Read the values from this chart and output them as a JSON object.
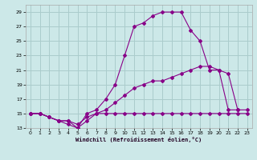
{
  "xlabel": "Windchill (Refroidissement éolien,°C)",
  "bg_color": "#cce8e8",
  "grid_color": "#aacccc",
  "line_color": "#880088",
  "xlim": [
    -0.5,
    23.5
  ],
  "ylim": [
    13,
    30
  ],
  "xticks": [
    0,
    1,
    2,
    3,
    4,
    5,
    6,
    7,
    8,
    9,
    10,
    11,
    12,
    13,
    14,
    15,
    16,
    17,
    18,
    19,
    20,
    21,
    22,
    23
  ],
  "yticks": [
    13,
    15,
    17,
    19,
    21,
    23,
    25,
    27,
    29
  ],
  "lines": [
    {
      "x": [
        0,
        1,
        2,
        3,
        4,
        5,
        6,
        7,
        8,
        9,
        10,
        11,
        12,
        13,
        14,
        15,
        16,
        17,
        18,
        19,
        20,
        21,
        22,
        23
      ],
      "y": [
        15,
        15,
        14.5,
        14,
        14,
        13.5,
        14.5,
        15,
        15,
        15,
        15,
        15,
        15,
        15,
        15,
        15,
        15,
        15,
        15,
        15,
        15,
        15,
        15,
        15
      ]
    },
    {
      "x": [
        0,
        1,
        2,
        3,
        4,
        5,
        6,
        7,
        8,
        9,
        10,
        11,
        12,
        13,
        14,
        15,
        16,
        17,
        18,
        19,
        20,
        21,
        22,
        23
      ],
      "y": [
        15,
        15,
        14.5,
        14,
        13.5,
        13,
        14,
        15,
        15.5,
        16.5,
        17.5,
        18.5,
        19,
        19.5,
        19.5,
        20,
        20.5,
        21,
        21.5,
        21.5,
        21,
        20.5,
        15.5,
        15.5
      ]
    },
    {
      "x": [
        0,
        1,
        2,
        3,
        4,
        5,
        6,
        7,
        8,
        9,
        10,
        11,
        12,
        13,
        14,
        15,
        16,
        17,
        18,
        19,
        20,
        21,
        22
      ],
      "y": [
        15,
        15,
        14.5,
        14,
        14,
        13,
        15,
        15.5,
        17,
        19,
        23,
        27,
        27.5,
        28.5,
        29,
        29,
        29,
        26.5,
        25,
        21,
        21,
        15.5,
        15.5
      ]
    }
  ]
}
